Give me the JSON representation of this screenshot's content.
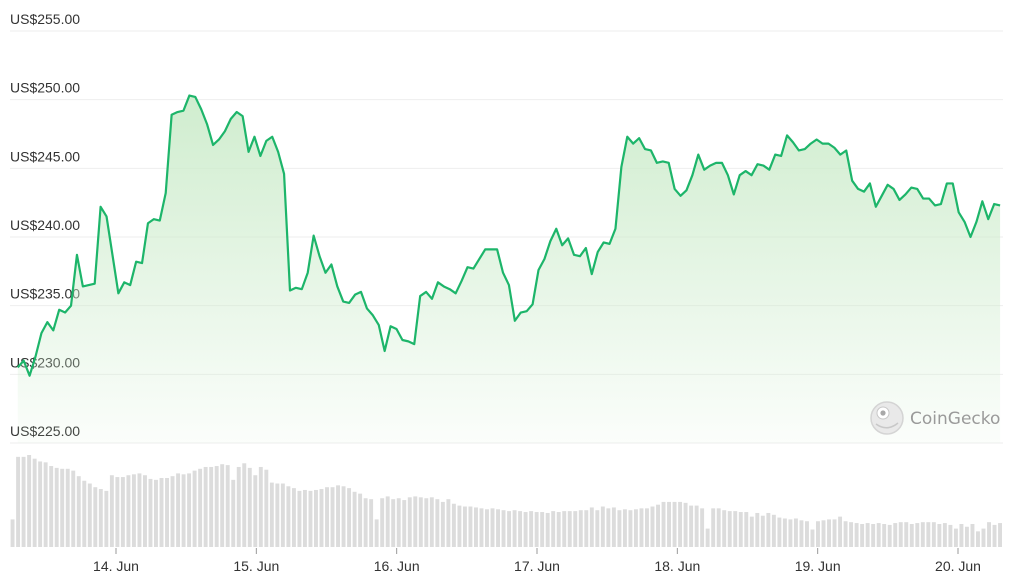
{
  "chart_data": {
    "type": "area",
    "title": "",
    "xlabel": "",
    "ylabel": "",
    "ylim": [
      225,
      255
    ],
    "y_ticks": [
      255,
      250,
      245,
      240,
      235,
      230,
      225
    ],
    "y_tick_labels": [
      "US$255.00",
      "US$250.00",
      "US$245.00",
      "US$240.00",
      "US$235.00",
      "US$230.00",
      "US$225.00"
    ],
    "x_ticks": [
      14,
      15,
      16,
      17,
      18,
      19,
      20
    ],
    "x_tick_labels": [
      "14. Jun",
      "15. Jun",
      "16. Jun",
      "17. Jun",
      "18. Jun",
      "19. Jun",
      "20. Jun"
    ],
    "xlim": [
      13.3,
      20.3
    ],
    "grid": true,
    "colors": {
      "line": "#1db56a",
      "area_top": "#cdeccc",
      "volume_bar": "#dcdcdc",
      "grid": "#eeeeee"
    },
    "watermark": {
      "text": "CoinGecko",
      "icon": "gecko-logo-icon"
    },
    "series": [
      {
        "values": [
          230.5,
          231.0,
          229.9,
          231.3,
          233.0,
          233.8,
          233.2,
          234.7,
          234.5,
          235.0,
          238.7,
          236.4,
          236.5,
          236.6,
          242.2,
          241.5,
          238.7,
          235.9,
          236.7,
          236.5,
          238.2,
          238.1,
          241.0,
          241.3,
          241.2,
          243.2,
          248.9,
          249.1,
          249.2,
          250.3,
          250.2,
          249.3,
          248.2,
          246.7,
          247.1,
          247.7,
          248.6,
          249.1,
          248.8,
          246.2,
          247.3,
          245.9,
          247.0,
          247.3,
          246.2,
          244.6,
          236.1,
          236.3,
          236.2,
          237.4,
          240.1,
          238.6,
          237.4,
          238.0,
          236.4,
          235.3,
          235.2,
          235.8,
          236.0,
          234.8,
          234.3,
          233.6,
          231.7,
          233.5,
          233.3,
          232.5,
          232.4,
          232.2,
          235.7,
          236.0,
          235.5,
          236.7,
          236.4,
          236.2,
          235.9,
          236.8,
          237.8,
          237.7,
          238.4,
          239.1,
          239.1,
          239.1,
          237.4,
          236.5,
          233.9,
          234.5,
          234.6,
          235.1,
          237.6,
          238.4,
          239.7,
          240.6,
          239.4,
          239.9,
          238.7,
          238.6,
          239.2,
          237.3,
          238.9,
          239.6,
          239.5,
          240.6,
          245.1,
          247.3,
          246.8,
          247.2,
          246.4,
          246.3,
          245.4,
          245.5,
          245.4,
          243.5,
          243.0,
          243.4,
          244.5,
          246.0,
          244.9,
          245.2,
          245.4,
          245.4,
          244.5,
          243.1,
          244.5,
          244.8,
          244.5,
          245.3,
          245.2,
          244.9,
          246.0,
          245.9,
          247.4,
          246.9,
          246.3,
          246.4,
          246.8,
          247.1,
          246.8,
          246.8,
          246.5,
          246.0,
          246.3,
          244.1,
          243.5,
          243.3,
          243.9,
          242.2,
          243.0,
          243.8,
          243.5,
          242.7,
          243.1,
          243.6,
          243.5,
          242.8,
          242.8,
          242.3,
          242.4,
          243.9,
          243.9,
          241.8,
          241.1,
          240.0,
          241.1,
          242.6,
          241.3,
          242.4,
          242.3
        ]
      }
    ],
    "volume": [
      0.3,
      0.98,
      0.98,
      1.0,
      0.96,
      0.93,
      0.92,
      0.88,
      0.86,
      0.85,
      0.85,
      0.83,
      0.77,
      0.72,
      0.69,
      0.65,
      0.63,
      0.61,
      0.78,
      0.76,
      0.76,
      0.78,
      0.79,
      0.8,
      0.78,
      0.74,
      0.73,
      0.75,
      0.75,
      0.77,
      0.8,
      0.79,
      0.8,
      0.83,
      0.85,
      0.87,
      0.87,
      0.88,
      0.9,
      0.89,
      0.73,
      0.87,
      0.91,
      0.86,
      0.78,
      0.87,
      0.84,
      0.7,
      0.69,
      0.69,
      0.66,
      0.64,
      0.61,
      0.62,
      0.61,
      0.62,
      0.63,
      0.65,
      0.65,
      0.67,
      0.66,
      0.64,
      0.6,
      0.58,
      0.53,
      0.52,
      0.3,
      0.53,
      0.55,
      0.52,
      0.53,
      0.51,
      0.54,
      0.55,
      0.54,
      0.53,
      0.54,
      0.52,
      0.49,
      0.52,
      0.47,
      0.45,
      0.44,
      0.44,
      0.43,
      0.42,
      0.41,
      0.42,
      0.41,
      0.4,
      0.39,
      0.4,
      0.39,
      0.38,
      0.39,
      0.38,
      0.38,
      0.37,
      0.39,
      0.38,
      0.39,
      0.39,
      0.39,
      0.4,
      0.4,
      0.43,
      0.4,
      0.44,
      0.42,
      0.43,
      0.4,
      0.41,
      0.4,
      0.41,
      0.42,
      0.42,
      0.44,
      0.46,
      0.49,
      0.49,
      0.49,
      0.49,
      0.48,
      0.45,
      0.45,
      0.42,
      0.2,
      0.42,
      0.42,
      0.4,
      0.39,
      0.39,
      0.38,
      0.38,
      0.33,
      0.37,
      0.34,
      0.37,
      0.35,
      0.32,
      0.31,
      0.3,
      0.31,
      0.29,
      0.28,
      0.19,
      0.28,
      0.29,
      0.3,
      0.3,
      0.33,
      0.28,
      0.27,
      0.26,
      0.25,
      0.26,
      0.25,
      0.26,
      0.25,
      0.24,
      0.26,
      0.27,
      0.27,
      0.25,
      0.26,
      0.27,
      0.27,
      0.27,
      0.25,
      0.26,
      0.24,
      0.2,
      0.25,
      0.22,
      0.25,
      0.17,
      0.2,
      0.27,
      0.24,
      0.26
    ]
  }
}
